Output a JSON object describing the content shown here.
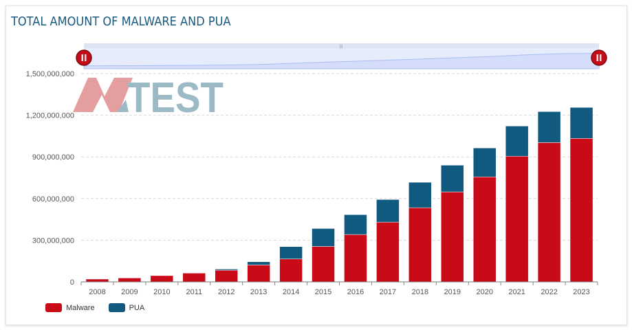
{
  "chart_data": {
    "type": "bar",
    "stacked": true,
    "title": "TOTAL AMOUNT OF MALWARE AND PUA",
    "categories": [
      "2008",
      "2009",
      "2010",
      "2011",
      "2012",
      "2013",
      "2014",
      "2015",
      "2016",
      "2017",
      "2018",
      "2019",
      "2020",
      "2021",
      "2022",
      "2023"
    ],
    "series": [
      {
        "name": "Malware",
        "color": "#c90a17",
        "values": [
          20,
          28,
          45,
          63,
          84,
          122,
          165,
          255,
          341,
          430,
          534,
          648,
          756,
          905,
          1003,
          1033
        ]
      },
      {
        "name": "PUA",
        "color": "#0f5a7e",
        "values": [
          0,
          0,
          0,
          0,
          8,
          23,
          89,
          129,
          143,
          163,
          183,
          192,
          208,
          217,
          223,
          223
        ]
      }
    ],
    "value_unit": "millions",
    "ylim": [
      0,
      1500000000
    ],
    "yticks": [
      "0",
      "300,000,000",
      "600,000,000",
      "900,000,000",
      "1,200,000,000",
      "1,500,000,000"
    ],
    "grid": true,
    "legend": "bottom-left",
    "navigator": true
  },
  "logo": {
    "text": "AV-TEST"
  }
}
